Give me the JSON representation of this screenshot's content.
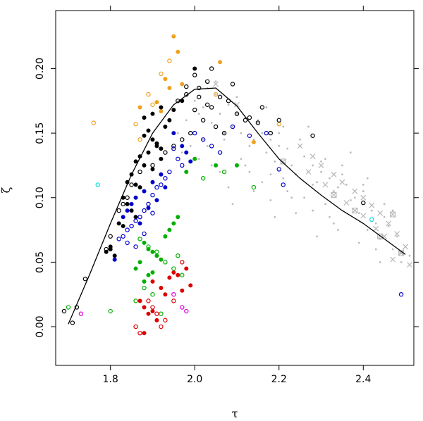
{
  "chart_data": {
    "type": "scatter",
    "title": "",
    "xlabel": "τ",
    "ylabel": "ζ",
    "xlim": [
      1.67,
      2.52
    ],
    "ylim": [
      -0.03,
      0.245
    ],
    "grid": false,
    "x_ticks": [
      1.8,
      2.0,
      2.2,
      2.4
    ],
    "x_tick_labels": [
      "1.8",
      "2.0",
      "2.2",
      "2.4"
    ],
    "y_ticks": [
      0.0,
      0.05,
      0.1,
      0.15,
      0.2
    ],
    "y_tick_labels": [
      "0.00",
      "0.05",
      "0.10",
      "0.15",
      "0.20"
    ],
    "colors": {
      "black": "#000000",
      "orange": "#f0a020",
      "blue": "#0000cc",
      "green": "#00b000",
      "red": "#dd0000",
      "magenta": "#dd00dd",
      "cyan": "#00dddd",
      "gray": "#bbbbbb"
    },
    "fit_curve": {
      "x": [
        1.7,
        1.75,
        1.8,
        1.85,
        1.9,
        1.95,
        2.0,
        2.05,
        2.1,
        2.15,
        2.2,
        2.25,
        2.3,
        2.35,
        2.4,
        2.45,
        2.5
      ],
      "y": [
        0.002,
        0.04,
        0.08,
        0.118,
        0.15,
        0.172,
        0.184,
        0.185,
        0.171,
        0.15,
        0.13,
        0.115,
        0.102,
        0.09,
        0.08,
        0.068,
        0.056
      ]
    },
    "series": [
      {
        "color": "orange",
        "marker": "filled",
        "x": [
          1.95,
          1.96,
          2.06,
          1.93,
          1.94,
          1.97,
          1.91,
          1.87,
          1.92,
          2.14
        ],
        "y": [
          0.225,
          0.213,
          0.205,
          0.192,
          0.185,
          0.188,
          0.174,
          0.17,
          0.167,
          0.143
        ]
      },
      {
        "color": "orange",
        "marker": "open",
        "x": [
          1.94,
          1.92,
          1.89,
          1.9,
          1.76,
          1.86,
          1.87,
          2.05,
          2.2
        ],
        "y": [
          0.206,
          0.196,
          0.18,
          0.172,
          0.158,
          0.157,
          0.145,
          0.18,
          0.157
        ]
      },
      {
        "color": "black",
        "marker": "filled",
        "x": [
          1.88,
          1.89,
          1.9,
          1.91,
          1.92,
          1.89,
          1.87,
          1.86,
          1.88,
          1.9,
          1.92,
          1.91,
          1.93,
          1.85,
          1.84,
          1.86,
          1.87,
          1.83,
          1.84,
          1.85,
          1.86,
          1.82,
          1.83,
          1.8,
          1.79,
          1.81,
          1.8,
          1.94,
          1.95,
          1.97,
          2.0,
          1.88,
          1.9,
          1.92
        ],
        "y": [
          0.148,
          0.152,
          0.145,
          0.14,
          0.138,
          0.135,
          0.132,
          0.128,
          0.125,
          0.122,
          0.13,
          0.142,
          0.155,
          0.118,
          0.112,
          0.11,
          0.108,
          0.1,
          0.095,
          0.09,
          0.085,
          0.08,
          0.078,
          0.06,
          0.058,
          0.055,
          0.062,
          0.16,
          0.168,
          0.175,
          0.2,
          0.162,
          0.165,
          0.17
        ]
      },
      {
        "color": "black",
        "marker": "open",
        "x": [
          2.03,
          2.01,
          2.06,
          2.08,
          2.04,
          2.0,
          1.98,
          1.96,
          2.1,
          2.12,
          2.15,
          2.18,
          2.2,
          2.28,
          2.05,
          2.02,
          1.99,
          1.97,
          1.95,
          1.93,
          1.9,
          1.87,
          1.85,
          1.84,
          1.83,
          1.82,
          1.8,
          1.79,
          1.74,
          1.69,
          1.72,
          1.71,
          2.0,
          2.04,
          2.09,
          2.16,
          2.4,
          2.07,
          2.13,
          2.03,
          2.01,
          1.98
        ],
        "y": [
          0.19,
          0.185,
          0.178,
          0.175,
          0.17,
          0.168,
          0.18,
          0.175,
          0.165,
          0.16,
          0.158,
          0.15,
          0.16,
          0.148,
          0.155,
          0.16,
          0.15,
          0.145,
          0.14,
          0.135,
          0.125,
          0.12,
          0.11,
          0.1,
          0.095,
          0.09,
          0.07,
          0.06,
          0.037,
          0.012,
          0.015,
          0.003,
          0.195,
          0.2,
          0.188,
          0.17,
          0.096,
          0.15,
          0.162,
          0.172,
          0.178,
          0.186
        ]
      },
      {
        "color": "blue",
        "marker": "filled",
        "x": [
          1.95,
          1.97,
          1.98,
          1.99,
          1.92,
          1.9,
          1.88,
          1.86,
          1.85,
          1.84,
          1.83,
          1.89,
          1.91,
          1.93,
          1.87,
          1.81
        ],
        "y": [
          0.15,
          0.14,
          0.135,
          0.128,
          0.118,
          0.112,
          0.105,
          0.1,
          0.095,
          0.09,
          0.085,
          0.092,
          0.098,
          0.108,
          0.08,
          0.052
        ]
      },
      {
        "color": "blue",
        "marker": "open",
        "x": [
          2.0,
          2.02,
          2.04,
          2.06,
          1.96,
          1.94,
          1.93,
          1.92,
          1.91,
          1.9,
          1.89,
          1.88,
          1.87,
          1.86,
          1.85,
          1.84,
          1.83,
          1.82,
          1.84,
          1.86,
          1.88,
          1.9,
          2.09,
          2.13,
          2.17,
          2.21,
          2.2,
          2.49,
          1.97,
          1.95
        ],
        "y": [
          0.15,
          0.145,
          0.14,
          0.135,
          0.13,
          0.12,
          0.115,
          0.11,
          0.108,
          0.102,
          0.095,
          0.09,
          0.085,
          0.082,
          0.078,
          0.075,
          0.07,
          0.068,
          0.065,
          0.062,
          0.072,
          0.088,
          0.155,
          0.148,
          0.15,
          0.11,
          0.122,
          0.025,
          0.125,
          0.138
        ]
      },
      {
        "color": "green",
        "marker": "filled",
        "x": [
          1.88,
          1.89,
          1.9,
          1.91,
          1.92,
          1.87,
          1.86,
          1.89,
          1.93,
          1.94,
          1.95,
          1.96,
          2.05,
          2.1,
          2.0,
          1.98,
          1.9,
          1.88
        ],
        "y": [
          0.065,
          0.06,
          0.058,
          0.055,
          0.052,
          0.05,
          0.045,
          0.04,
          0.07,
          0.075,
          0.08,
          0.085,
          0.125,
          0.125,
          0.13,
          0.12,
          0.042,
          0.035
        ]
      },
      {
        "color": "green",
        "marker": "open",
        "x": [
          1.87,
          1.89,
          1.91,
          1.93,
          1.95,
          1.97,
          1.88,
          1.9,
          1.86,
          1.8,
          1.7,
          2.02,
          2.07,
          2.14,
          1.96,
          1.92
        ],
        "y": [
          0.068,
          0.062,
          0.058,
          0.05,
          0.045,
          0.04,
          0.03,
          0.025,
          0.02,
          0.012,
          0.015,
          0.115,
          0.12,
          0.108,
          0.055,
          0.01
        ]
      },
      {
        "color": "red",
        "marker": "filled",
        "x": [
          1.9,
          1.92,
          1.94,
          1.95,
          1.96,
          1.98,
          1.87,
          1.88,
          1.89,
          1.91,
          1.93,
          1.97,
          1.99,
          1.88,
          1.9
        ],
        "y": [
          0.035,
          0.03,
          0.038,
          0.042,
          0.04,
          0.045,
          0.02,
          0.015,
          0.01,
          0.005,
          0.025,
          0.028,
          0.032,
          -0.005,
          0.012
        ]
      },
      {
        "color": "red",
        "marker": "open",
        "x": [
          1.89,
          1.9,
          1.91,
          1.92,
          1.86,
          1.87,
          1.95,
          1.97,
          1.93
        ],
        "y": [
          0.02,
          0.015,
          0.01,
          0.0,
          0.0,
          -0.005,
          0.02,
          0.05,
          0.005
        ]
      },
      {
        "color": "magenta",
        "marker": "open",
        "x": [
          1.73,
          1.97,
          1.98,
          1.95
        ],
        "y": [
          0.01,
          0.015,
          0.012,
          0.025
        ]
      },
      {
        "color": "cyan",
        "marker": "open",
        "x": [
          1.77,
          2.42
        ],
        "y": [
          0.11,
          0.083
        ]
      },
      {
        "color": "gray",
        "marker": "cross",
        "x": [
          2.25,
          2.28,
          2.3,
          2.33,
          2.35,
          2.38,
          2.4,
          2.42,
          2.44,
          2.46,
          2.48,
          2.5,
          2.45,
          2.43,
          2.47,
          2.49,
          2.51,
          2.4,
          2.36,
          2.31,
          2.27,
          2.05,
          2.1
        ],
        "y": [
          0.14,
          0.132,
          0.125,
          0.118,
          0.112,
          0.105,
          0.1,
          0.094,
          0.088,
          0.08,
          0.072,
          0.062,
          0.07,
          0.076,
          0.052,
          0.058,
          0.048,
          0.086,
          0.096,
          0.11,
          0.12,
          0.188,
          0.172
        ]
      },
      {
        "color": "gray",
        "marker": "boxcross",
        "x": [
          2.21,
          2.33,
          2.38,
          2.44,
          2.47,
          2.49
        ],
        "y": [
          0.128,
          0.102,
          0.09,
          0.07,
          0.087,
          0.057
        ]
      }
    ],
    "gray_cloud": {
      "x": [
        2.0,
        2.05,
        2.1,
        2.15,
        2.2,
        2.25,
        2.3,
        2.35,
        2.4,
        2.45,
        1.98,
        2.02,
        2.08,
        2.12,
        2.18,
        2.22,
        2.28,
        2.32,
        2.38,
        2.42,
        2.48,
        1.96,
        2.06,
        2.16,
        2.26,
        2.36,
        2.46,
        2.03,
        2.13,
        2.23,
        2.33,
        2.43,
        2.01,
        2.11,
        2.21,
        2.31,
        2.41,
        2.07,
        2.17,
        2.27,
        2.37,
        2.47,
        2.04,
        2.14,
        2.24,
        2.34,
        2.44,
        1.99,
        2.09,
        2.19,
        2.29,
        2.39,
        2.49,
        2.06,
        2.16,
        2.26,
        2.08,
        2.18,
        2.28,
        2.12,
        2.22,
        2.32,
        2.02,
        2.1,
        2.2,
        2.3,
        2.4,
        2.05,
        2.15,
        2.25,
        2.35,
        2.45,
        1.97,
        2.07,
        2.17,
        2.27,
        2.37,
        2.47,
        2.01,
        2.11,
        2.21,
        2.31,
        2.41,
        2.51,
        2.03,
        2.13,
        2.23,
        2.33,
        2.43,
        2.09,
        2.19,
        2.29,
        2.39,
        2.14,
        2.24,
        2.34,
        2.44,
        2.04,
        2.18,
        2.28
      ],
      "y": [
        0.175,
        0.18,
        0.165,
        0.158,
        0.15,
        0.14,
        0.128,
        0.118,
        0.105,
        0.085,
        0.16,
        0.17,
        0.172,
        0.162,
        0.145,
        0.138,
        0.125,
        0.115,
        0.1,
        0.09,
        0.07,
        0.15,
        0.165,
        0.15,
        0.132,
        0.11,
        0.078,
        0.14,
        0.14,
        0.125,
        0.105,
        0.08,
        0.13,
        0.13,
        0.115,
        0.095,
        0.075,
        0.15,
        0.135,
        0.12,
        0.098,
        0.06,
        0.158,
        0.145,
        0.118,
        0.108,
        0.068,
        0.14,
        0.155,
        0.128,
        0.112,
        0.088,
        0.05,
        0.12,
        0.112,
        0.1,
        0.108,
        0.098,
        0.09,
        0.125,
        0.105,
        0.085,
        0.145,
        0.178,
        0.14,
        0.12,
        0.11,
        0.19,
        0.16,
        0.145,
        0.125,
        0.095,
        0.135,
        0.145,
        0.17,
        0.155,
        0.135,
        0.09,
        0.165,
        0.15,
        0.155,
        0.13,
        0.115,
        0.055,
        0.185,
        0.12,
        0.1,
        0.08,
        0.06,
        0.095,
        0.085,
        0.07,
        0.065,
        0.105,
        0.088,
        0.075,
        0.05,
        0.125,
        0.118,
        0.11
      ]
    }
  }
}
